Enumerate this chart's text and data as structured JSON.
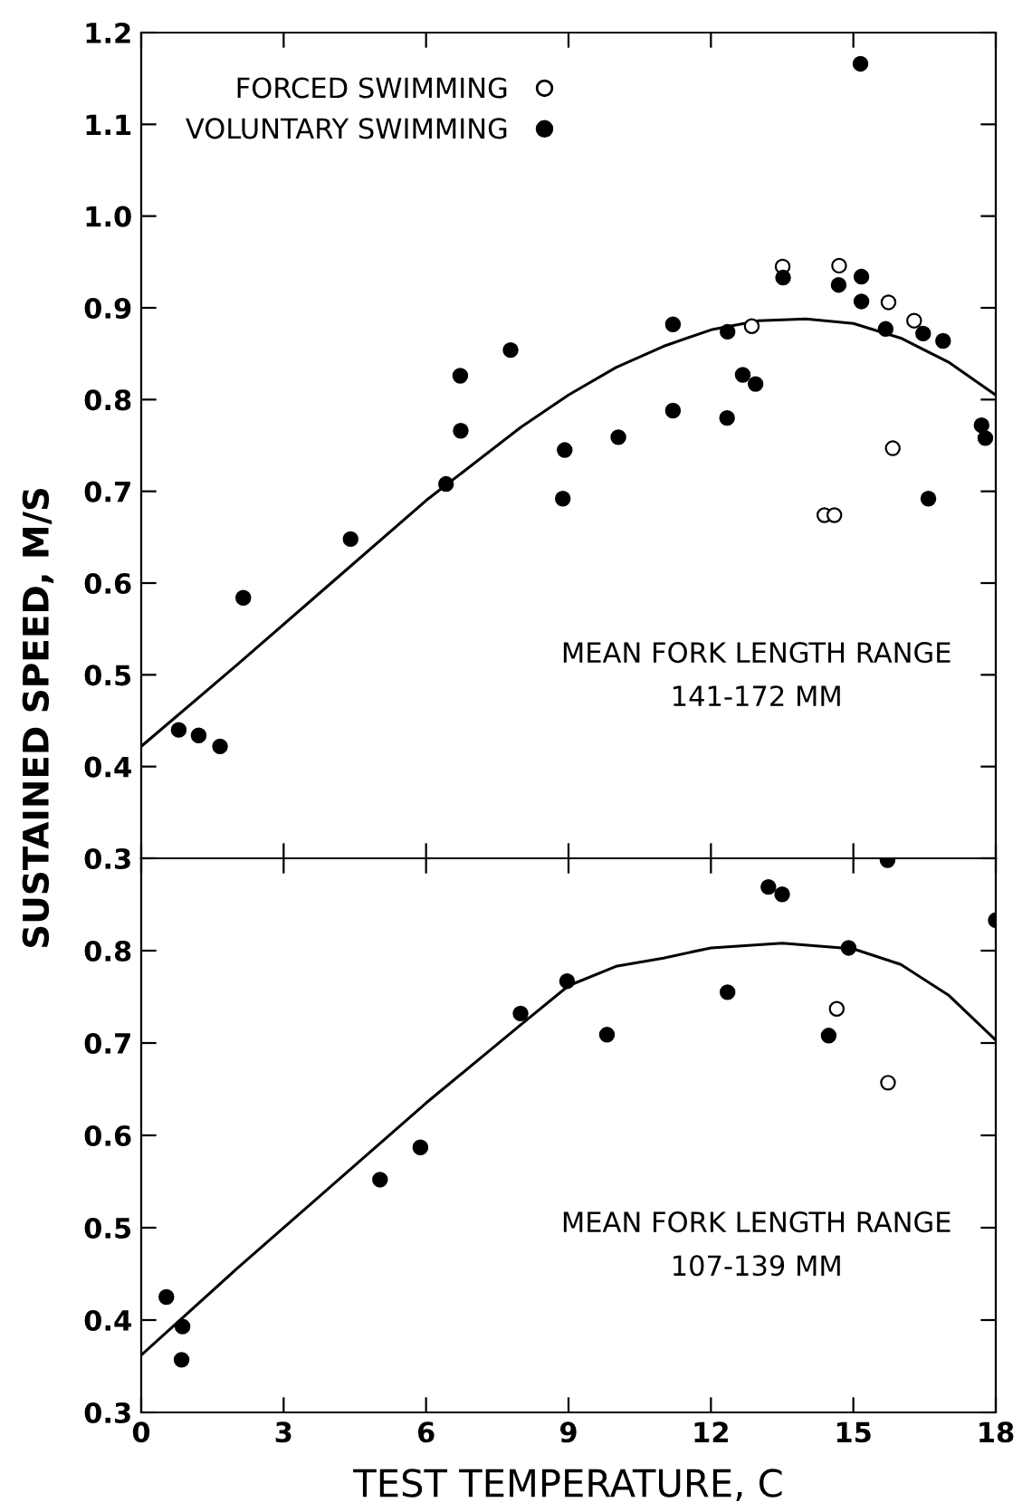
{
  "chart_data": [
    {
      "type": "scatter",
      "ylabel": "SUSTAINED SPEED, M/S",
      "annotations": [
        "MEAN FORK LENGTH RANGE\n141-172 MM"
      ],
      "xlim": [
        0,
        18
      ],
      "ylim": [
        0.3,
        1.2
      ],
      "xticks": [
        0,
        3,
        6,
        9,
        12,
        15,
        18
      ],
      "yticks": [
        0.3,
        0.4,
        0.5,
        0.6,
        0.7,
        0.8,
        0.9,
        {
          "value": 1.0,
          "label": "1.0"
        },
        1.1,
        1.2
      ],
      "tick_labels": "y",
      "grid": false,
      "legend": "top left",
      "series": [
        {
          "name": "FORCED SWIMMING",
          "type": "scatter",
          "marker": "circle",
          "color": "#ffffff",
          "x": [
            13.51,
            14.7,
            15.74,
            12.86,
            16.28,
            15.83,
            14.39,
            14.6
          ],
          "values": [
            0.945,
            0.946,
            0.906,
            0.88,
            0.886,
            0.747,
            0.674,
            0.674
          ]
        },
        {
          "name": "VOLUNTARY SWIMMING",
          "type": "scatter",
          "marker": "circle",
          "color": "#000000",
          "x": [
            0.79,
            1.21,
            1.66,
            2.15,
            4.41,
            6.42,
            6.72,
            6.73,
            7.78,
            8.92,
            8.88,
            10.05,
            11.2,
            11.2,
            12.35,
            12.34,
            12.67,
            12.94,
            13.52,
            14.69,
            15.15,
            15.17,
            15.17,
            15.68,
            16.41,
            16.47,
            16.89,
            16.58,
            17.7,
            17.78
          ],
          "values": [
            0.44,
            0.434,
            0.422,
            0.584,
            0.648,
            0.708,
            0.826,
            0.766,
            0.854,
            0.745,
            0.692,
            0.759,
            0.882,
            0.788,
            0.874,
            0.78,
            0.827,
            0.817,
            0.933,
            0.925,
            1.166,
            0.934,
            0.907,
            0.877,
            null,
            0.872,
            0.864,
            0.692,
            0.772,
            0.758
          ]
        },
        {
          "type": "line",
          "marker": "none",
          "line_style": "solid",
          "color": "#000000",
          "x": [
            0,
            2,
            4,
            6,
            8,
            9,
            10,
            11,
            12,
            13,
            14,
            15,
            16,
            17,
            18
          ],
          "values": [
            0.422,
            0.51,
            0.6,
            0.69,
            0.77,
            0.805,
            0.835,
            0.858,
            0.876,
            0.886,
            0.888,
            0.883,
            0.867,
            0.841,
            0.805
          ]
        }
      ]
    },
    {
      "type": "scatter",
      "xlabel": "TEST TEMPERATURE, C",
      "annotations": [
        "MEAN FORK LENGTH RANGE\n107-139 MM"
      ],
      "xlim": [
        0,
        18
      ],
      "ylim": [
        0.3,
        0.9
      ],
      "xticks": [
        0,
        3,
        6,
        9,
        12,
        15,
        18
      ],
      "yticks": [
        0.3,
        0.4,
        0.5,
        0.6,
        0.7,
        0.8,
        {
          "value": 0.9,
          "label": null
        }
      ],
      "grid": false,
      "series": [
        {
          "type": "scatter",
          "marker": "circle",
          "color": "#ffffff",
          "x": [
            14.65,
            15.73
          ],
          "values": [
            0.737,
            0.657
          ]
        },
        {
          "type": "scatter",
          "marker": "circle",
          "color": "#000000",
          "x": [
            0.53,
            0.87,
            0.85,
            5.03,
            5.88,
            7.99,
            8.97,
            9.81,
            12.35,
            13.21,
            13.5,
            14.48,
            14.9,
            15.72,
            18.0
          ],
          "values": [
            0.425,
            0.393,
            0.357,
            0.552,
            0.587,
            0.732,
            0.767,
            0.709,
            0.755,
            0.869,
            0.861,
            0.708,
            0.803,
            0.898,
            0.833
          ]
        },
        {
          "type": "line",
          "marker": "none",
          "line_style": "solid",
          "color": "#000000",
          "x": [
            0,
            2,
            4,
            6,
            8,
            9,
            10,
            11,
            12,
            13.5,
            15,
            16,
            17,
            18
          ],
          "values": [
            0.362,
            0.455,
            0.545,
            0.635,
            0.72,
            0.762,
            0.783,
            0.792,
            0.803,
            0.808,
            0.802,
            0.785,
            0.752,
            0.703
          ]
        }
      ]
    }
  ]
}
